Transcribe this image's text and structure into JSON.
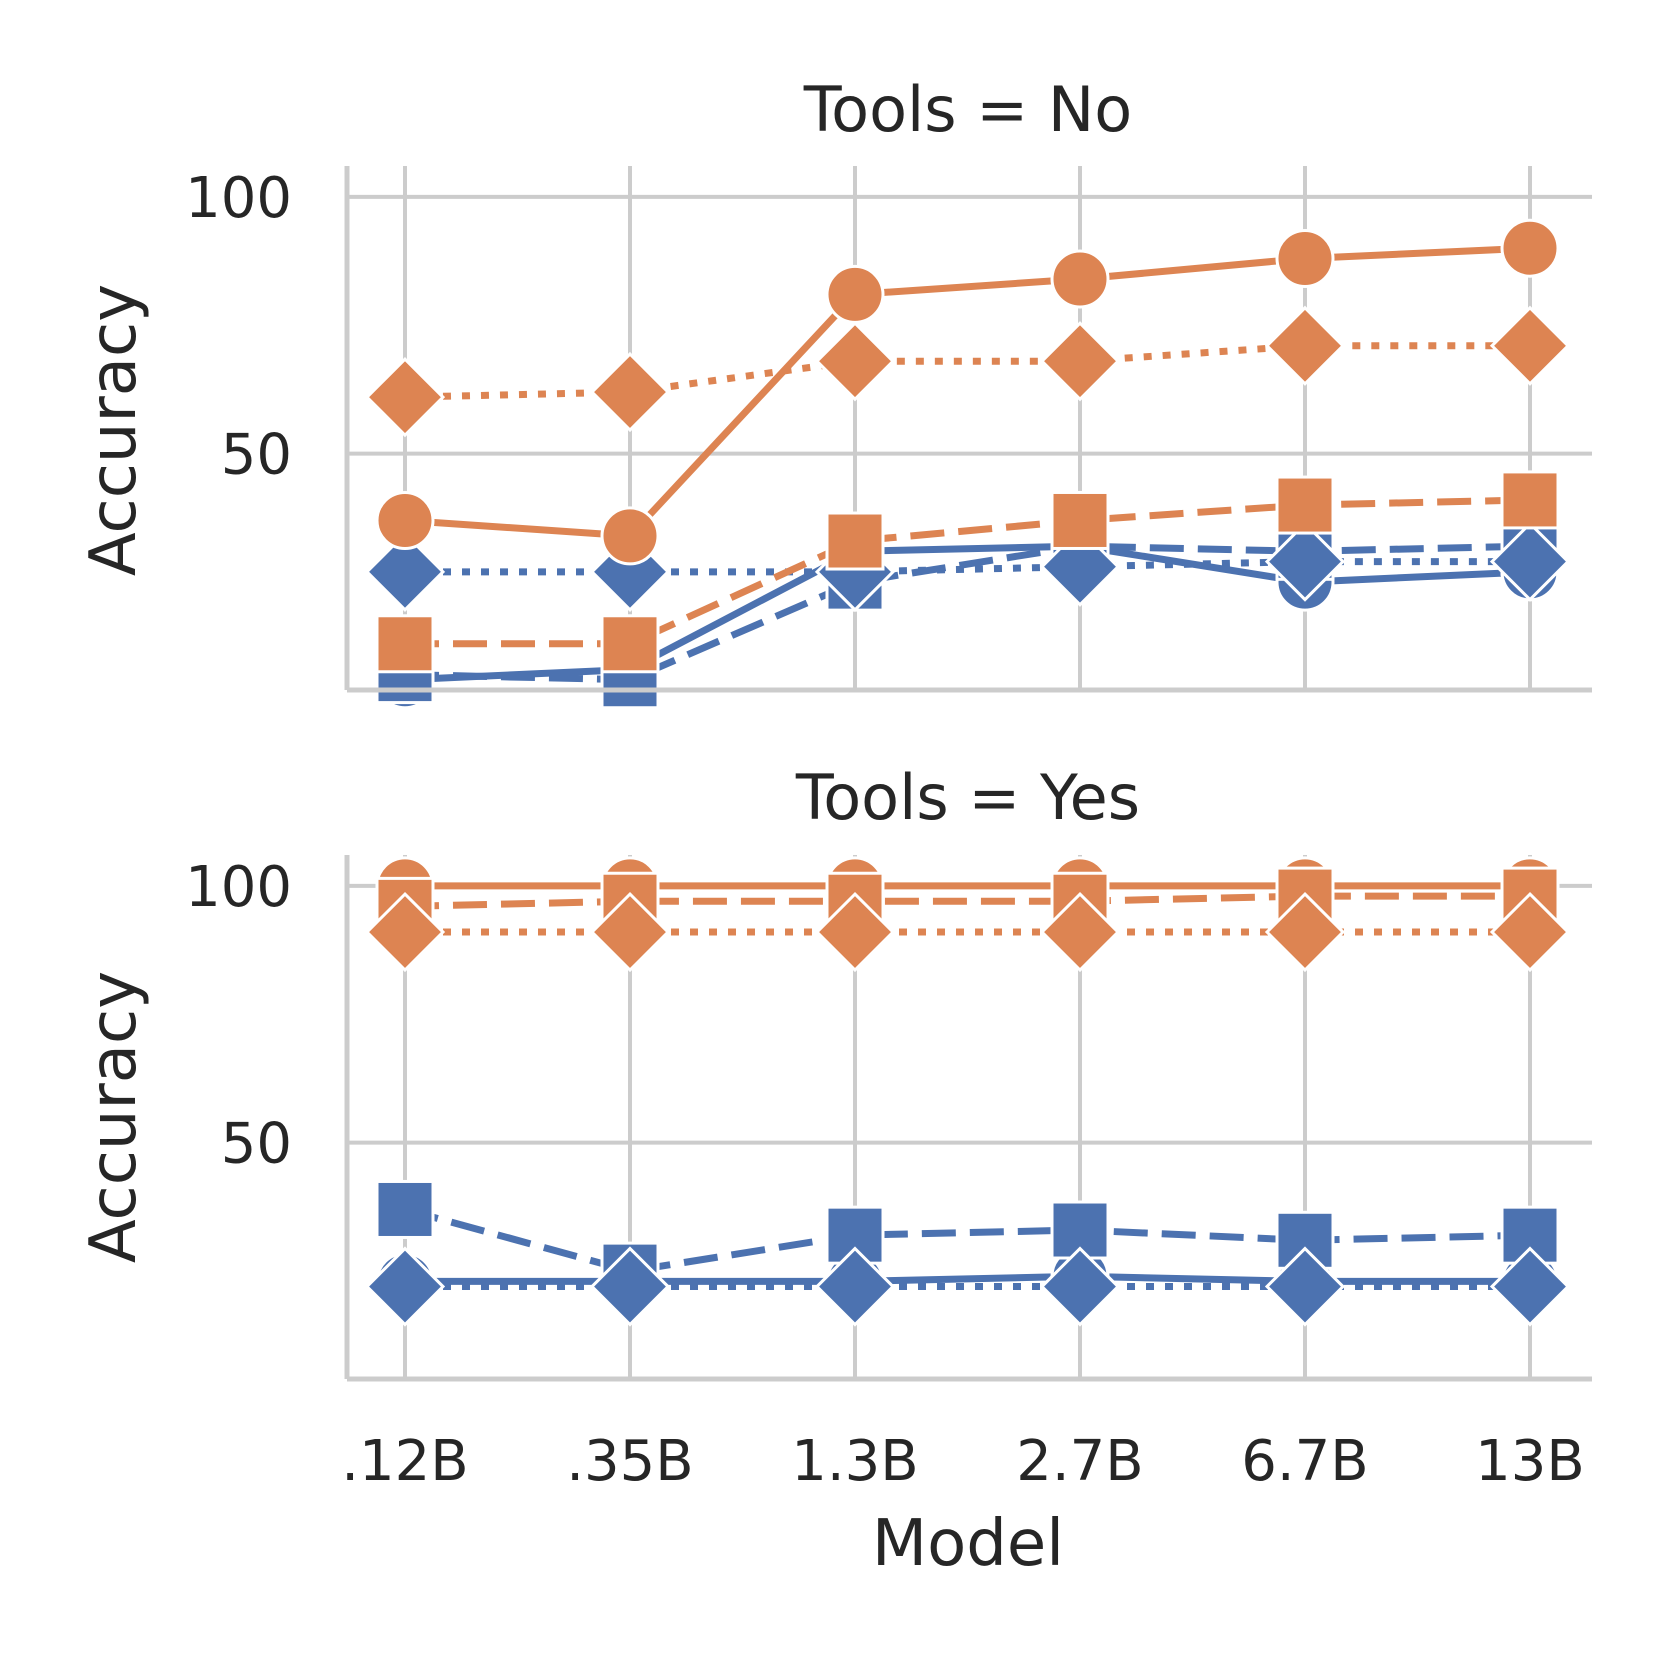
{
  "chart_data": [
    {
      "type": "line",
      "title": "Tools = No",
      "xlabel": "",
      "ylabel": "Accuracy",
      "categories": [
        ".12B",
        ".35B",
        "1.3B",
        "2.7B",
        "6.7B",
        "13B"
      ],
      "ylim": [
        4,
        106
      ],
      "yticks": [
        50,
        100
      ],
      "grid": true,
      "series": [
        {
          "color": "#4c72b0",
          "linestyle": "solid",
          "marker": "circle",
          "values": [
            6,
            8,
            31,
            32,
            25,
            27
          ]
        },
        {
          "color": "#4c72b0",
          "linestyle": "dashed",
          "marker": "square",
          "values": [
            7,
            6,
            25,
            32,
            31,
            32
          ]
        },
        {
          "color": "#4c72b0",
          "linestyle": "dotted",
          "marker": "diamond",
          "values": [
            27,
            27,
            27,
            28,
            29,
            29
          ]
        },
        {
          "color": "#dd8452",
          "linestyle": "solid",
          "marker": "circle",
          "values": [
            37,
            34,
            81,
            84,
            88,
            90
          ]
        },
        {
          "color": "#dd8452",
          "linestyle": "dashed",
          "marker": "square",
          "values": [
            13,
            13,
            33,
            37,
            40,
            41
          ]
        },
        {
          "color": "#dd8452",
          "linestyle": "dotted",
          "marker": "diamond",
          "values": [
            61,
            62,
            68,
            68,
            71,
            71
          ]
        }
      ]
    },
    {
      "type": "line",
      "title": "Tools = Yes",
      "xlabel": "Model",
      "ylabel": "Accuracy",
      "categories": [
        ".12B",
        ".35B",
        "1.3B",
        "2.7B",
        "6.7B",
        "13B"
      ],
      "ylim": [
        4,
        106
      ],
      "yticks": [
        50,
        100
      ],
      "grid": true,
      "series": [
        {
          "color": "#4c72b0",
          "linestyle": "solid",
          "marker": "circle",
          "values": [
            23,
            23,
            23,
            24,
            23,
            23
          ]
        },
        {
          "color": "#4c72b0",
          "linestyle": "dashed",
          "marker": "square",
          "values": [
            37,
            25,
            32,
            33,
            31,
            32
          ]
        },
        {
          "color": "#4c72b0",
          "linestyle": "dotted",
          "marker": "diamond",
          "values": [
            22,
            22,
            22,
            22,
            22,
            22
          ]
        },
        {
          "color": "#dd8452",
          "linestyle": "solid",
          "marker": "circle",
          "values": [
            100,
            100,
            100,
            100,
            100,
            100
          ]
        },
        {
          "color": "#dd8452",
          "linestyle": "dashed",
          "marker": "square",
          "values": [
            96,
            97,
            97,
            97,
            98,
            98
          ]
        },
        {
          "color": "#dd8452",
          "linestyle": "dotted",
          "marker": "diamond",
          "values": [
            91,
            91,
            91,
            91,
            91,
            91
          ]
        }
      ]
    }
  ]
}
